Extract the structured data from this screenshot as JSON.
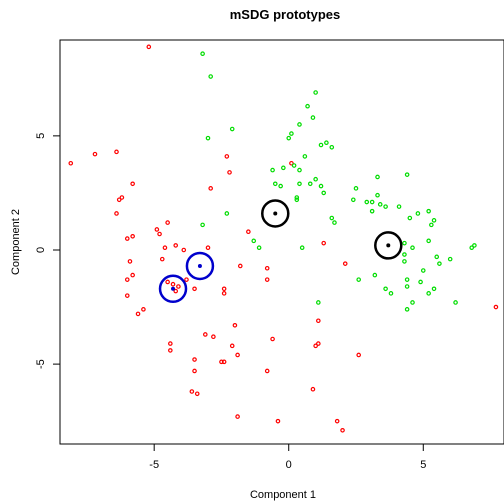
{
  "chart_data": {
    "type": "scatter",
    "title": "mSDG prototypes",
    "xlabel": "Component 1",
    "ylabel": "Component 2",
    "xlim": [
      -8.5,
      8
    ],
    "ylim": [
      -8.5,
      9.2
    ],
    "xticks": [
      -5,
      0,
      5
    ],
    "yticks": [
      -5,
      0,
      5
    ],
    "xtick_labels": [
      "-5",
      "0",
      "5"
    ],
    "ytick_labels": [
      "-5",
      "0",
      "5"
    ],
    "grid": false,
    "legend": "none",
    "series": [
      {
        "color": "#ff0000",
        "marker": "small-circle",
        "points": [
          [
            -5.2,
            8.9
          ],
          [
            -8.1,
            3.8
          ],
          [
            -7.2,
            4.2
          ],
          [
            -6.4,
            4.3
          ],
          [
            -5.8,
            2.9
          ],
          [
            -6.2,
            2.3
          ],
          [
            -6.3,
            2.2
          ],
          [
            -6.4,
            1.6
          ],
          [
            -6.0,
            0.5
          ],
          [
            -5.8,
            0.6
          ],
          [
            -5.9,
            -0.5
          ],
          [
            -5.8,
            -1.1
          ],
          [
            -6.0,
            -1.3
          ],
          [
            -6.0,
            -2.0
          ],
          [
            -5.4,
            -2.6
          ],
          [
            -5.6,
            -2.8
          ],
          [
            -4.9,
            0.9
          ],
          [
            -4.8,
            0.7
          ],
          [
            -4.5,
            1.2
          ],
          [
            -4.6,
            0.1
          ],
          [
            -4.2,
            0.2
          ],
          [
            -4.7,
            -0.4
          ],
          [
            -4.5,
            -1.4
          ],
          [
            -4.1,
            -1.6
          ],
          [
            -4.3,
            -1.5
          ],
          [
            -4.2,
            -1.8
          ],
          [
            -3.8,
            -1.3
          ],
          [
            -4.4,
            -4.1
          ],
          [
            -4.4,
            -4.4
          ],
          [
            -3.9,
            0.0
          ],
          [
            -3.0,
            0.1
          ],
          [
            -3.5,
            -1.7
          ],
          [
            -3.1,
            -3.7
          ],
          [
            -3.5,
            -4.8
          ],
          [
            -3.5,
            -5.3
          ],
          [
            -3.4,
            -6.3
          ],
          [
            -3.6,
            -6.2
          ],
          [
            -2.8,
            -3.8
          ],
          [
            -2.9,
            2.7
          ],
          [
            -2.3,
            4.1
          ],
          [
            -2.2,
            3.4
          ],
          [
            -1.8,
            -0.7
          ],
          [
            -2.4,
            -1.7
          ],
          [
            -2.4,
            -1.9
          ],
          [
            -2.0,
            -3.3
          ],
          [
            -2.1,
            -4.2
          ],
          [
            -1.9,
            -4.6
          ],
          [
            -2.5,
            -4.9
          ],
          [
            -2.4,
            -4.9
          ],
          [
            -1.9,
            -7.3
          ],
          [
            -1.5,
            0.8
          ],
          [
            -0.8,
            -0.8
          ],
          [
            -0.8,
            -1.3
          ],
          [
            -0.6,
            -3.9
          ],
          [
            -0.8,
            -5.3
          ],
          [
            -0.4,
            -7.5
          ],
          [
            0.1,
            3.8
          ],
          [
            1.3,
            0.3
          ],
          [
            1.1,
            -3.1
          ],
          [
            1.1,
            -4.1
          ],
          [
            1.0,
            -4.2
          ],
          [
            0.9,
            -6.1
          ],
          [
            2.1,
            -0.6
          ],
          [
            2.6,
            -4.6
          ],
          [
            1.8,
            -7.5
          ],
          [
            2.0,
            -7.9
          ],
          [
            7.7,
            -2.5
          ]
        ]
      },
      {
        "color": "#00dd00",
        "marker": "small-circle",
        "points": [
          [
            -3.2,
            8.6
          ],
          [
            -2.9,
            7.6
          ],
          [
            -2.1,
            5.3
          ],
          [
            -3.0,
            4.9
          ],
          [
            -3.2,
            1.1
          ],
          [
            -2.3,
            1.6
          ],
          [
            -1.1,
            0.1
          ],
          [
            -1.3,
            0.4
          ],
          [
            -0.6,
            3.5
          ],
          [
            -0.2,
            3.6
          ],
          [
            -0.5,
            2.9
          ],
          [
            -0.3,
            2.8
          ],
          [
            0.3,
            2.2
          ],
          [
            0.1,
            5.1
          ],
          [
            0.0,
            4.9
          ],
          [
            0.4,
            5.5
          ],
          [
            0.2,
            3.7
          ],
          [
            0.6,
            4.1
          ],
          [
            0.4,
            3.5
          ],
          [
            0.4,
            2.9
          ],
          [
            0.3,
            2.3
          ],
          [
            1.0,
            6.9
          ],
          [
            0.7,
            6.3
          ],
          [
            0.9,
            5.8
          ],
          [
            1.4,
            4.7
          ],
          [
            1.2,
            4.6
          ],
          [
            1.6,
            4.5
          ],
          [
            1.0,
            3.1
          ],
          [
            1.2,
            2.8
          ],
          [
            1.3,
            2.5
          ],
          [
            0.8,
            2.9
          ],
          [
            1.6,
            1.4
          ],
          [
            1.7,
            1.2
          ],
          [
            0.5,
            0.1
          ],
          [
            1.1,
            -2.3
          ],
          [
            2.4,
            2.2
          ],
          [
            2.5,
            2.7
          ],
          [
            2.9,
            2.1
          ],
          [
            3.1,
            1.7
          ],
          [
            3.1,
            2.1
          ],
          [
            3.3,
            3.2
          ],
          [
            3.3,
            2.4
          ],
          [
            3.4,
            2.0
          ],
          [
            3.6,
            1.9
          ],
          [
            4.1,
            1.9
          ],
          [
            4.4,
            3.3
          ],
          [
            4.5,
            1.4
          ],
          [
            4.3,
            0.3
          ],
          [
            4.3,
            -0.2
          ],
          [
            4.3,
            -0.5
          ],
          [
            4.6,
            0.1
          ],
          [
            4.8,
            1.6
          ],
          [
            5.2,
            1.7
          ],
          [
            5.3,
            1.1
          ],
          [
            5.4,
            1.3
          ],
          [
            5.2,
            0.4
          ],
          [
            5.5,
            -0.3
          ],
          [
            5.6,
            -0.6
          ],
          [
            5.0,
            -0.9
          ],
          [
            4.9,
            -1.4
          ],
          [
            4.4,
            -1.3
          ],
          [
            4.4,
            -1.6
          ],
          [
            4.6,
            -2.3
          ],
          [
            5.2,
            -1.9
          ],
          [
            5.4,
            -1.7
          ],
          [
            6.0,
            -0.4
          ],
          [
            6.2,
            -2.3
          ],
          [
            6.8,
            0.1
          ],
          [
            6.9,
            0.2
          ],
          [
            3.2,
            -1.1
          ],
          [
            2.6,
            -1.3
          ],
          [
            3.6,
            -1.7
          ],
          [
            3.8,
            -1.9
          ],
          [
            4.4,
            -2.6
          ]
        ]
      }
    ],
    "prototypes": [
      {
        "color": "#0000cc",
        "x": -3.3,
        "y": -0.7
      },
      {
        "color": "#0000cc",
        "x": -4.3,
        "y": -1.7
      },
      {
        "color": "#000000",
        "x": -0.5,
        "y": 1.6
      },
      {
        "color": "#000000",
        "x": 3.7,
        "y": 0.2
      }
    ]
  }
}
